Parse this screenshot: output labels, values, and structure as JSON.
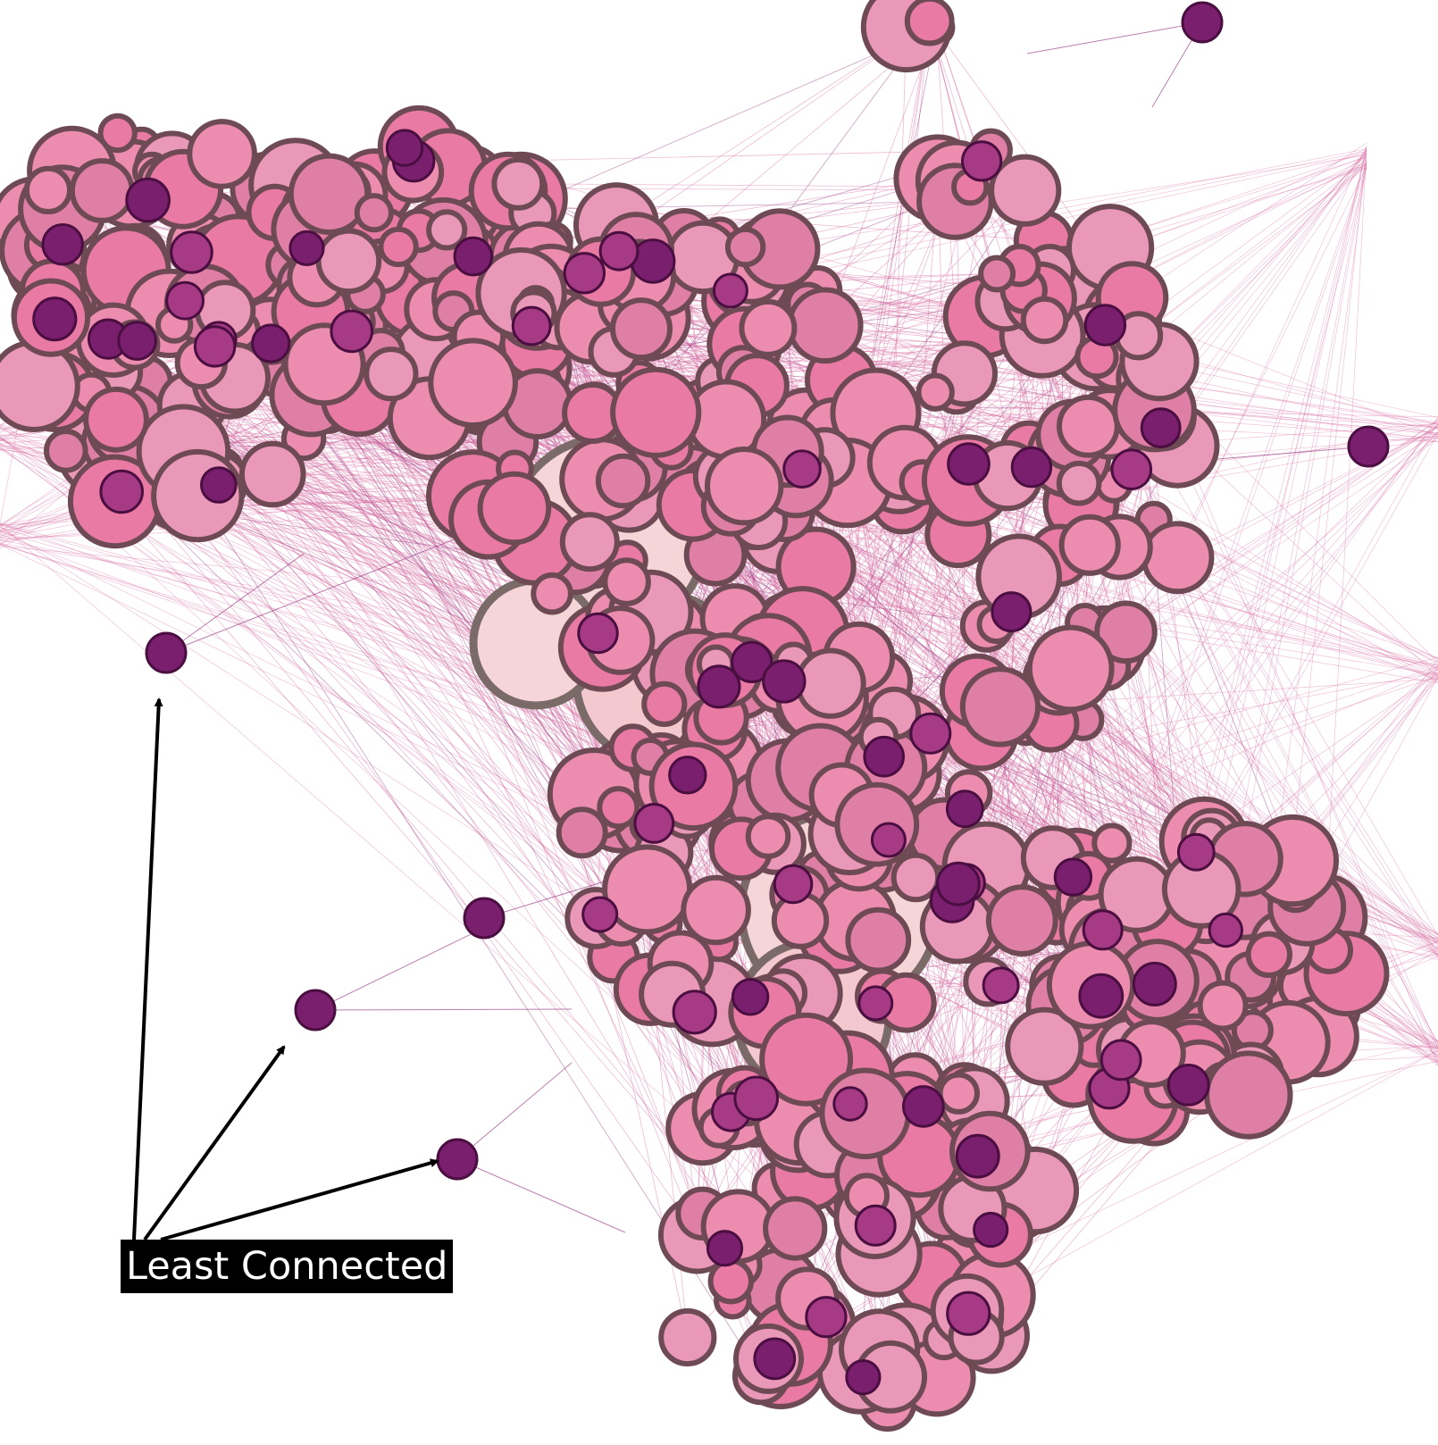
{
  "annotation": {
    "label": "Least Connected",
    "label_bg": "#000000",
    "label_color": "#ffffff"
  },
  "palette": {
    "edge": "#d66aa0",
    "edge_dark": "#8b2a7a",
    "node_stroke": "#6e4a55",
    "hub_stroke": "#7a6a68",
    "leaf_fill": "#7a1f6e",
    "leaf_stroke": "#4a0f40",
    "node_fills": [
      "#e97aa3",
      "#ec8db0",
      "#ea98b8",
      "#df7fa6",
      "#c8528f",
      "#a63a85"
    ],
    "hub_fills": [
      "#f5d5d8",
      "#f3c9cf"
    ],
    "arrow": "#000000"
  }
}
